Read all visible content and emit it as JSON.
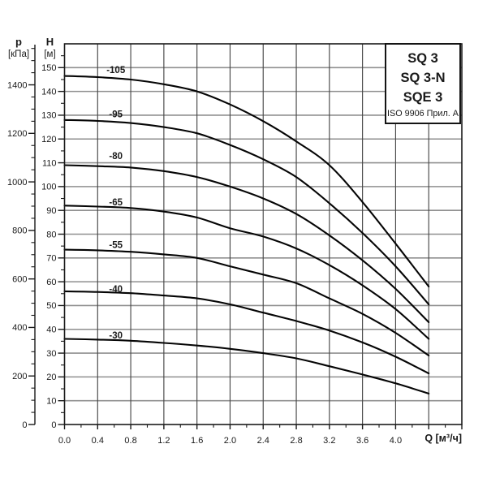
{
  "title_box": {
    "models": [
      "SQ 3",
      "SQ 3-N",
      "SQE 3"
    ],
    "note": "ISO 9906 Прил. A"
  },
  "axes": {
    "p": {
      "letter": "p",
      "unit": "[кПа]",
      "tick_labels": [
        0,
        200,
        400,
        600,
        800,
        1000,
        1200,
        1400
      ]
    },
    "h": {
      "letter": "H",
      "unit": "[м]",
      "tick_labels": [
        0,
        10,
        20,
        30,
        40,
        50,
        60,
        70,
        80,
        90,
        100,
        110,
        120,
        130,
        140,
        150
      ]
    },
    "q": {
      "label": "Q [м³/ч]",
      "tick_labels": [
        "0.0",
        "0.4",
        "0.8",
        "1.2",
        "1.6",
        "2.0",
        "2.4",
        "2.8",
        "3.2",
        "3.6",
        "4.0"
      ]
    }
  },
  "colors": {
    "curve": "#050505",
    "grid_horizontal": "#8f8f8f",
    "grid_vertical": "#474747",
    "frame": "#1a1a1a",
    "text": "#1a1a1a",
    "box_border": "#141414",
    "background": "#ffffff"
  },
  "chart_data": {
    "type": "line",
    "title": "",
    "xlabel": "Q [м³/ч]",
    "ylabel": "H [м]",
    "y2label": "p [кПа]",
    "xlim": [
      0,
      4.8
    ],
    "ylim": [
      0,
      160
    ],
    "y2lim_kpa": [
      0,
      1569
    ],
    "grid": true,
    "legend_position": "top-right-box",
    "legend_entries": [
      "SQ 3",
      "SQ 3-N",
      "SQE 3",
      "ISO 9906 Прил. A"
    ],
    "x": [
      0,
      0.4,
      0.8,
      1.2,
      1.6,
      2.0,
      2.4,
      2.8,
      3.2,
      3.6,
      4.0,
      4.4
    ],
    "label_q": 0.62,
    "series": [
      {
        "name": "-105",
        "label_h": 149.0,
        "values": [
          146.5,
          146.0,
          145.0,
          143.0,
          140.0,
          134.5,
          127.5,
          119.0,
          109.0,
          93.5,
          76.0,
          58.0
        ]
      },
      {
        "name": "-95",
        "label_h": 130.5,
        "values": [
          128.0,
          127.6,
          126.7,
          125.0,
          122.4,
          117.5,
          111.5,
          104.0,
          93.0,
          80.5,
          66.5,
          50.5
        ]
      },
      {
        "name": "-80",
        "label_h": 113.0,
        "values": [
          109.0,
          108.6,
          108.0,
          106.5,
          104.0,
          100.0,
          95.0,
          88.5,
          79.5,
          69.0,
          57.0,
          43.0
        ]
      },
      {
        "name": "-65",
        "label_h": 93.5,
        "values": [
          92.0,
          91.6,
          91.0,
          89.5,
          87.0,
          82.5,
          79.0,
          74.0,
          67.0,
          58.5,
          48.5,
          36.0
        ]
      },
      {
        "name": "-55",
        "label_h": 75.5,
        "values": [
          73.5,
          73.2,
          72.6,
          71.5,
          70.0,
          66.5,
          63.0,
          59.4,
          53.0,
          46.5,
          38.5,
          29.0
        ]
      },
      {
        "name": "-40",
        "label_h": 57.0,
        "values": [
          56.0,
          55.7,
          55.2,
          54.2,
          53.0,
          50.5,
          47.0,
          43.5,
          39.5,
          34.5,
          28.5,
          21.5
        ]
      },
      {
        "name": "-30",
        "label_h": 37.5,
        "values": [
          36.0,
          35.7,
          35.2,
          34.3,
          33.2,
          31.8,
          30.0,
          27.8,
          24.5,
          21.0,
          17.3,
          13.0
        ]
      }
    ]
  }
}
